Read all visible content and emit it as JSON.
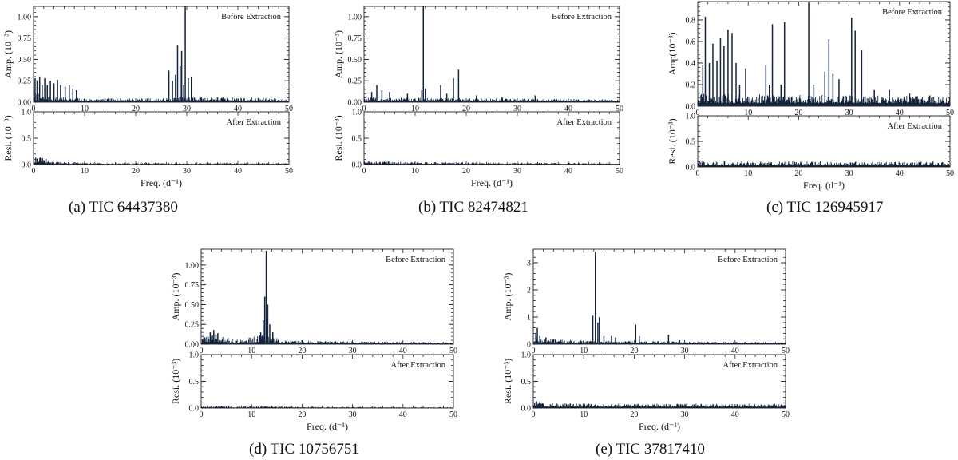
{
  "chart_data": [
    {
      "type": "line",
      "id": "a",
      "caption": "(a) TIC 64437380",
      "xlabel": "Freq. (d⁻¹)",
      "xlim": [
        0,
        50
      ],
      "xticks": [
        "0",
        "10",
        "20",
        "30",
        "40",
        "50"
      ],
      "top": {
        "ylabel": "Amp. (10⁻³)",
        "ylim": [
          0,
          1.12
        ],
        "yticks": [
          "0.00",
          "0.25",
          "0.50",
          "0.75",
          "1.00"
        ],
        "yticks_values": [
          0,
          0.25,
          0.5,
          0.75,
          1.0
        ],
        "annotation": "Before Extraction",
        "noise": 0.04,
        "noise_profile": [
          [
            0,
            0.1
          ],
          [
            3,
            0.06
          ],
          [
            10,
            0.04
          ],
          [
            25,
            0.04
          ],
          [
            30,
            0.06
          ],
          [
            50,
            0.04
          ]
        ],
        "peaks": [
          [
            0.3,
            0.28
          ],
          [
            0.7,
            0.25
          ],
          [
            1.2,
            0.3
          ],
          [
            1.7,
            0.2
          ],
          [
            2.2,
            0.28
          ],
          [
            2.7,
            0.2
          ],
          [
            3.3,
            0.25
          ],
          [
            4.0,
            0.22
          ],
          [
            4.7,
            0.26
          ],
          [
            5.3,
            0.2
          ],
          [
            6.2,
            0.18
          ],
          [
            7.0,
            0.2
          ],
          [
            7.7,
            0.16
          ],
          [
            8.4,
            0.14
          ],
          [
            26.5,
            0.37
          ],
          [
            27.2,
            0.25
          ],
          [
            27.8,
            0.32
          ],
          [
            28.2,
            0.67
          ],
          [
            28.7,
            0.42
          ],
          [
            29.0,
            0.6
          ],
          [
            29.4,
            0.2
          ],
          [
            29.7,
            1.13
          ],
          [
            30.3,
            0.28
          ],
          [
            30.9,
            0.3
          ]
        ]
      },
      "bottom": {
        "ylabel": "Resi. (10⁻³)",
        "ylim": [
          0,
          1.0
        ],
        "yticks": [
          "0.0",
          "0.5",
          "1.0"
        ],
        "yticks_values": [
          0,
          0.5,
          1.0
        ],
        "annotation": "After Extraction",
        "noise": 0.02,
        "noise_profile": [
          [
            0,
            0.16
          ],
          [
            1.5,
            0.12
          ],
          [
            4,
            0.05
          ],
          [
            10,
            0.03
          ],
          [
            50,
            0.025
          ]
        ],
        "peaks": []
      }
    },
    {
      "type": "line",
      "id": "b",
      "caption": "(b) TIC 82474821",
      "xlabel": "Freq. (d⁻¹)",
      "xlim": [
        0,
        50
      ],
      "xticks": [
        "0",
        "10",
        "20",
        "30",
        "40",
        "50"
      ],
      "top": {
        "ylabel": "Amp. (10⁻³)",
        "ylim": [
          0,
          1.12
        ],
        "yticks": [
          "0.00",
          "0.25",
          "0.50",
          "0.75",
          "1.00"
        ],
        "yticks_values": [
          0,
          0.25,
          0.5,
          0.75,
          1.0
        ],
        "annotation": "Before Extraction",
        "noise": 0.035,
        "noise_profile": [
          [
            0,
            0.05
          ],
          [
            50,
            0.03
          ]
        ],
        "peaks": [
          [
            1.5,
            0.12
          ],
          [
            2.5,
            0.2
          ],
          [
            3.5,
            0.14
          ],
          [
            5.0,
            0.12
          ],
          [
            8.5,
            0.1
          ],
          [
            11.3,
            0.14
          ],
          [
            11.6,
            1.12
          ],
          [
            12.0,
            0.16
          ],
          [
            15.0,
            0.2
          ],
          [
            16.2,
            0.1
          ],
          [
            17.5,
            0.28
          ],
          [
            18.5,
            0.38
          ],
          [
            22.0,
            0.08
          ],
          [
            27.0,
            0.06
          ],
          [
            33.5,
            0.08
          ]
        ]
      },
      "bottom": {
        "ylabel": "Resi. (10⁻³)",
        "ylim": [
          0,
          1.0
        ],
        "yticks": [
          "0.0",
          "0.5",
          "1.0"
        ],
        "yticks_values": [
          0,
          0.5,
          1.0
        ],
        "annotation": "After Extraction",
        "noise": 0.025,
        "noise_profile": [
          [
            0,
            0.06
          ],
          [
            10,
            0.04
          ],
          [
            35,
            0.03
          ],
          [
            50,
            0.02
          ]
        ],
        "peaks": []
      }
    },
    {
      "type": "line",
      "id": "c",
      "caption": "(c) TIC 126945917",
      "xlabel": "Freq. (d⁻¹)",
      "xlim": [
        0,
        50
      ],
      "xticks": [
        "0",
        "10",
        "20",
        "30",
        "40",
        "50"
      ],
      "top": {
        "ylabel": "Amp(10⁻³)",
        "ylim": [
          0,
          0.97
        ],
        "yticks": [
          "0.0",
          "0.2",
          "0.4",
          "0.6",
          "0.8"
        ],
        "yticks_values": [
          0,
          0.2,
          0.4,
          0.6,
          0.8
        ],
        "annotation": "Before Extraction",
        "noise": 0.08,
        "noise_profile": [
          [
            0,
            0.1
          ],
          [
            50,
            0.08
          ]
        ],
        "peaks": [
          [
            1.0,
            0.38
          ],
          [
            1.5,
            0.83
          ],
          [
            2.3,
            0.4
          ],
          [
            3.0,
            0.58
          ],
          [
            3.8,
            0.42
          ],
          [
            4.5,
            0.63
          ],
          [
            5.2,
            0.56
          ],
          [
            6.0,
            0.71
          ],
          [
            6.8,
            0.68
          ],
          [
            7.6,
            0.4
          ],
          [
            8.3,
            0.2
          ],
          [
            9.5,
            0.35
          ],
          [
            13.5,
            0.38
          ],
          [
            14.2,
            0.2
          ],
          [
            14.8,
            0.76
          ],
          [
            16.5,
            0.2
          ],
          [
            17.2,
            0.78
          ],
          [
            22.0,
            0.96
          ],
          [
            23.0,
            0.2
          ],
          [
            25.2,
            0.32
          ],
          [
            26.0,
            0.62
          ],
          [
            26.8,
            0.3
          ],
          [
            28.0,
            0.25
          ],
          [
            30.5,
            0.82
          ],
          [
            31.2,
            0.7
          ],
          [
            32.5,
            0.52
          ],
          [
            35.0,
            0.15
          ],
          [
            38.0,
            0.15
          ],
          [
            42.0,
            0.12
          ],
          [
            46.0,
            0.1
          ]
        ]
      },
      "bottom": {
        "ylabel": "Resi. (10⁻³)",
        "ylim": [
          0,
          1.0
        ],
        "yticks": [
          "0.0",
          "0.5",
          "1.0"
        ],
        "yticks_values": [
          0,
          0.5,
          1.0
        ],
        "annotation": "After Extraction",
        "noise": 0.08,
        "noise_profile": [
          [
            0,
            0.1
          ],
          [
            50,
            0.09
          ]
        ],
        "peaks": []
      }
    },
    {
      "type": "line",
      "id": "d",
      "caption": "(d) TIC 10756751",
      "xlabel": "Freq. (d⁻¹)",
      "xlim": [
        0,
        50
      ],
      "xticks": [
        "0",
        "10",
        "20",
        "30",
        "40",
        "50"
      ],
      "top": {
        "ylabel": "Amp. (10⁻³)",
        "ylim": [
          0,
          1.2
        ],
        "yticks": [
          "0.00",
          "0.25",
          "0.50",
          "0.75",
          "1.00"
        ],
        "yticks_values": [
          0,
          0.25,
          0.5,
          0.75,
          1.0
        ],
        "annotation": "Before Extraction",
        "noise": 0.035,
        "noise_profile": [
          [
            0,
            0.05
          ],
          [
            1,
            0.12
          ],
          [
            4,
            0.1
          ],
          [
            7,
            0.05
          ],
          [
            12,
            0.1
          ],
          [
            14,
            0.1
          ],
          [
            16,
            0.04
          ],
          [
            50,
            0.02
          ]
        ],
        "peaks": [
          [
            1.8,
            0.15
          ],
          [
            2.5,
            0.18
          ],
          [
            3.3,
            0.14
          ],
          [
            11.8,
            0.15
          ],
          [
            12.3,
            0.3
          ],
          [
            12.6,
            0.6
          ],
          [
            12.9,
            1.18
          ],
          [
            13.2,
            0.5
          ],
          [
            13.6,
            0.25
          ],
          [
            14.2,
            0.15
          ],
          [
            20.0,
            0.05
          ]
        ]
      },
      "bottom": {
        "ylabel": "Resi. (10⁻³)",
        "ylim": [
          0,
          1.0
        ],
        "yticks": [
          "0.0",
          "0.5",
          "1.0"
        ],
        "yticks_values": [
          0,
          0.5,
          1.0
        ],
        "annotation": "After Extraction",
        "noise": 0.02,
        "noise_profile": [
          [
            0,
            0.04
          ],
          [
            10,
            0.03
          ],
          [
            20,
            0.02
          ],
          [
            50,
            0.015
          ]
        ],
        "peaks": []
      }
    },
    {
      "type": "line",
      "id": "e",
      "caption": "(e) TIC 37817410",
      "xlabel": "Freq. (d⁻¹)",
      "xlim": [
        0,
        50
      ],
      "xticks": [
        "0",
        "10",
        "20",
        "30",
        "40",
        "50"
      ],
      "top": {
        "ylabel": "Amp. (10⁻³)",
        "ylim": [
          0,
          3.5
        ],
        "yticks": [
          "0",
          "1",
          "2",
          "3"
        ],
        "yticks_values": [
          0,
          1,
          2,
          3
        ],
        "annotation": "Before Extraction",
        "noise": 0.12,
        "noise_profile": [
          [
            0,
            0.3
          ],
          [
            2,
            0.18
          ],
          [
            10,
            0.12
          ],
          [
            50,
            0.06
          ]
        ],
        "peaks": [
          [
            0.5,
            0.4
          ],
          [
            0.8,
            0.6
          ],
          [
            1.3,
            0.3
          ],
          [
            2.5,
            0.25
          ],
          [
            11.8,
            1.05
          ],
          [
            12.3,
            3.4
          ],
          [
            12.8,
            0.8
          ],
          [
            13.1,
            1.0
          ],
          [
            14.0,
            0.3
          ],
          [
            15.5,
            0.3
          ],
          [
            16.3,
            0.25
          ],
          [
            20.3,
            0.72
          ],
          [
            21.0,
            0.3
          ],
          [
            26.8,
            0.35
          ],
          [
            29.0,
            0.15
          ]
        ]
      },
      "bottom": {
        "ylabel": "Resi. (10⁻³)",
        "ylim": [
          0,
          1.0
        ],
        "yticks": [
          "0.0",
          "0.5",
          "1.0"
        ],
        "yticks_values": [
          0,
          0.5,
          1.0
        ],
        "annotation": "After Extraction",
        "noise": 0.05,
        "noise_profile": [
          [
            0,
            0.13
          ],
          [
            3,
            0.08
          ],
          [
            15,
            0.07
          ],
          [
            50,
            0.07
          ]
        ],
        "peaks": []
      }
    }
  ]
}
